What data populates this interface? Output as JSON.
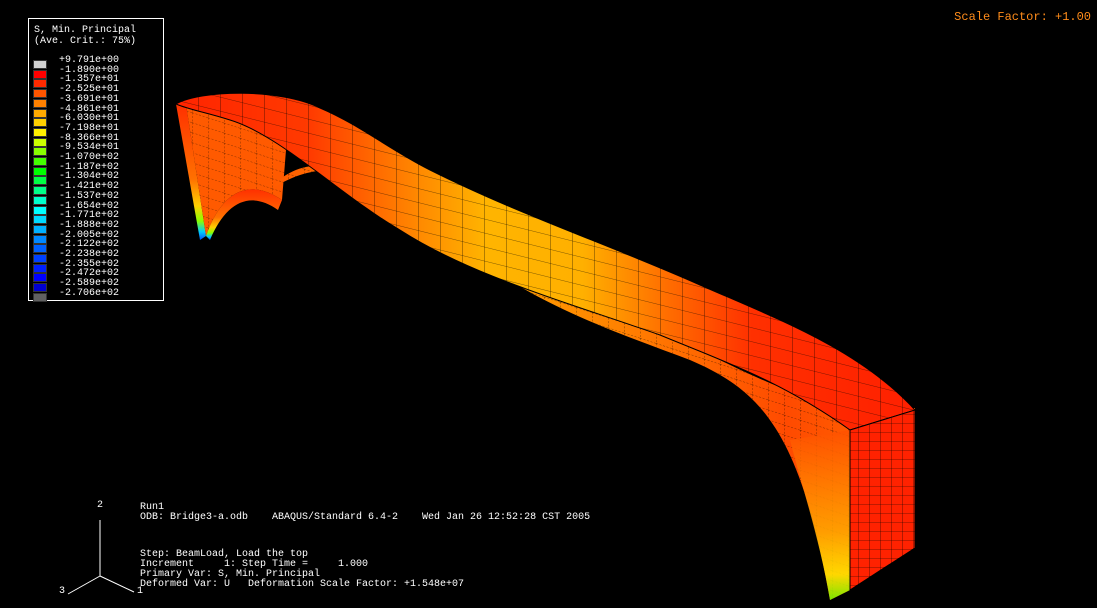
{
  "header": {
    "scale_factor": "Scale Factor: +1.00"
  },
  "legend": {
    "title_line1": "S, Min. Principal",
    "title_line2": "(Ave. Crit.: 75%)",
    "entries": [
      {
        "value": "+9.791e+00",
        "color": "#d0d0d0"
      },
      {
        "value": "-1.890e+00",
        "color": "#ff0000"
      },
      {
        "value": "-1.357e+01",
        "color": "#ff2a00"
      },
      {
        "value": "-2.525e+01",
        "color": "#ff5500"
      },
      {
        "value": "-3.691e+01",
        "color": "#ff8000"
      },
      {
        "value": "-4.861e+01",
        "color": "#ffaa00"
      },
      {
        "value": "-6.030e+01",
        "color": "#ffd000"
      },
      {
        "value": "-7.198e+01",
        "color": "#fff000"
      },
      {
        "value": "-8.366e+01",
        "color": "#ccff00"
      },
      {
        "value": "-9.534e+01",
        "color": "#88ff00"
      },
      {
        "value": "-1.070e+02",
        "color": "#44ff00"
      },
      {
        "value": "-1.187e+02",
        "color": "#00ff00"
      },
      {
        "value": "-1.304e+02",
        "color": "#00ff44"
      },
      {
        "value": "-1.421e+02",
        "color": "#00ff88"
      },
      {
        "value": "-1.537e+02",
        "color": "#00ffcc"
      },
      {
        "value": "-1.654e+02",
        "color": "#00ffff"
      },
      {
        "value": "-1.771e+02",
        "color": "#00d8ff"
      },
      {
        "value": "-1.888e+02",
        "color": "#00b0ff"
      },
      {
        "value": "-2.005e+02",
        "color": "#0088ff"
      },
      {
        "value": "-2.122e+02",
        "color": "#0060ff"
      },
      {
        "value": "-2.238e+02",
        "color": "#0040ff"
      },
      {
        "value": "-2.355e+02",
        "color": "#0020ff"
      },
      {
        "value": "-2.472e+02",
        "color": "#0000ff"
      },
      {
        "value": "-2.589e+02",
        "color": "#0000d0"
      },
      {
        "value": "-2.706e+02",
        "color": "#606060"
      }
    ]
  },
  "info": {
    "run": "Run1",
    "odb_line": "ODB: Bridge3-a.odb    ABAQUS/Standard 6.4-2    Wed Jan 26 12:52:28 CST 2005",
    "step_line": "Step: BeamLoad, Load the top",
    "increment_line": "Increment     1: Step Time =     1.000",
    "primary_line": "Primary Var: S, Min. Principal",
    "deformed_line": "Deformed Var: U   Deformation Scale Factor: +1.548e+07"
  },
  "triad": {
    "axis_up": "2",
    "axis_left": "3",
    "axis_right": "1"
  },
  "colors": {
    "background": "#000000",
    "scale_factor_text": "#ff8c1a",
    "beam_main": "#ff2200",
    "beam_mid": "#ffb000"
  }
}
